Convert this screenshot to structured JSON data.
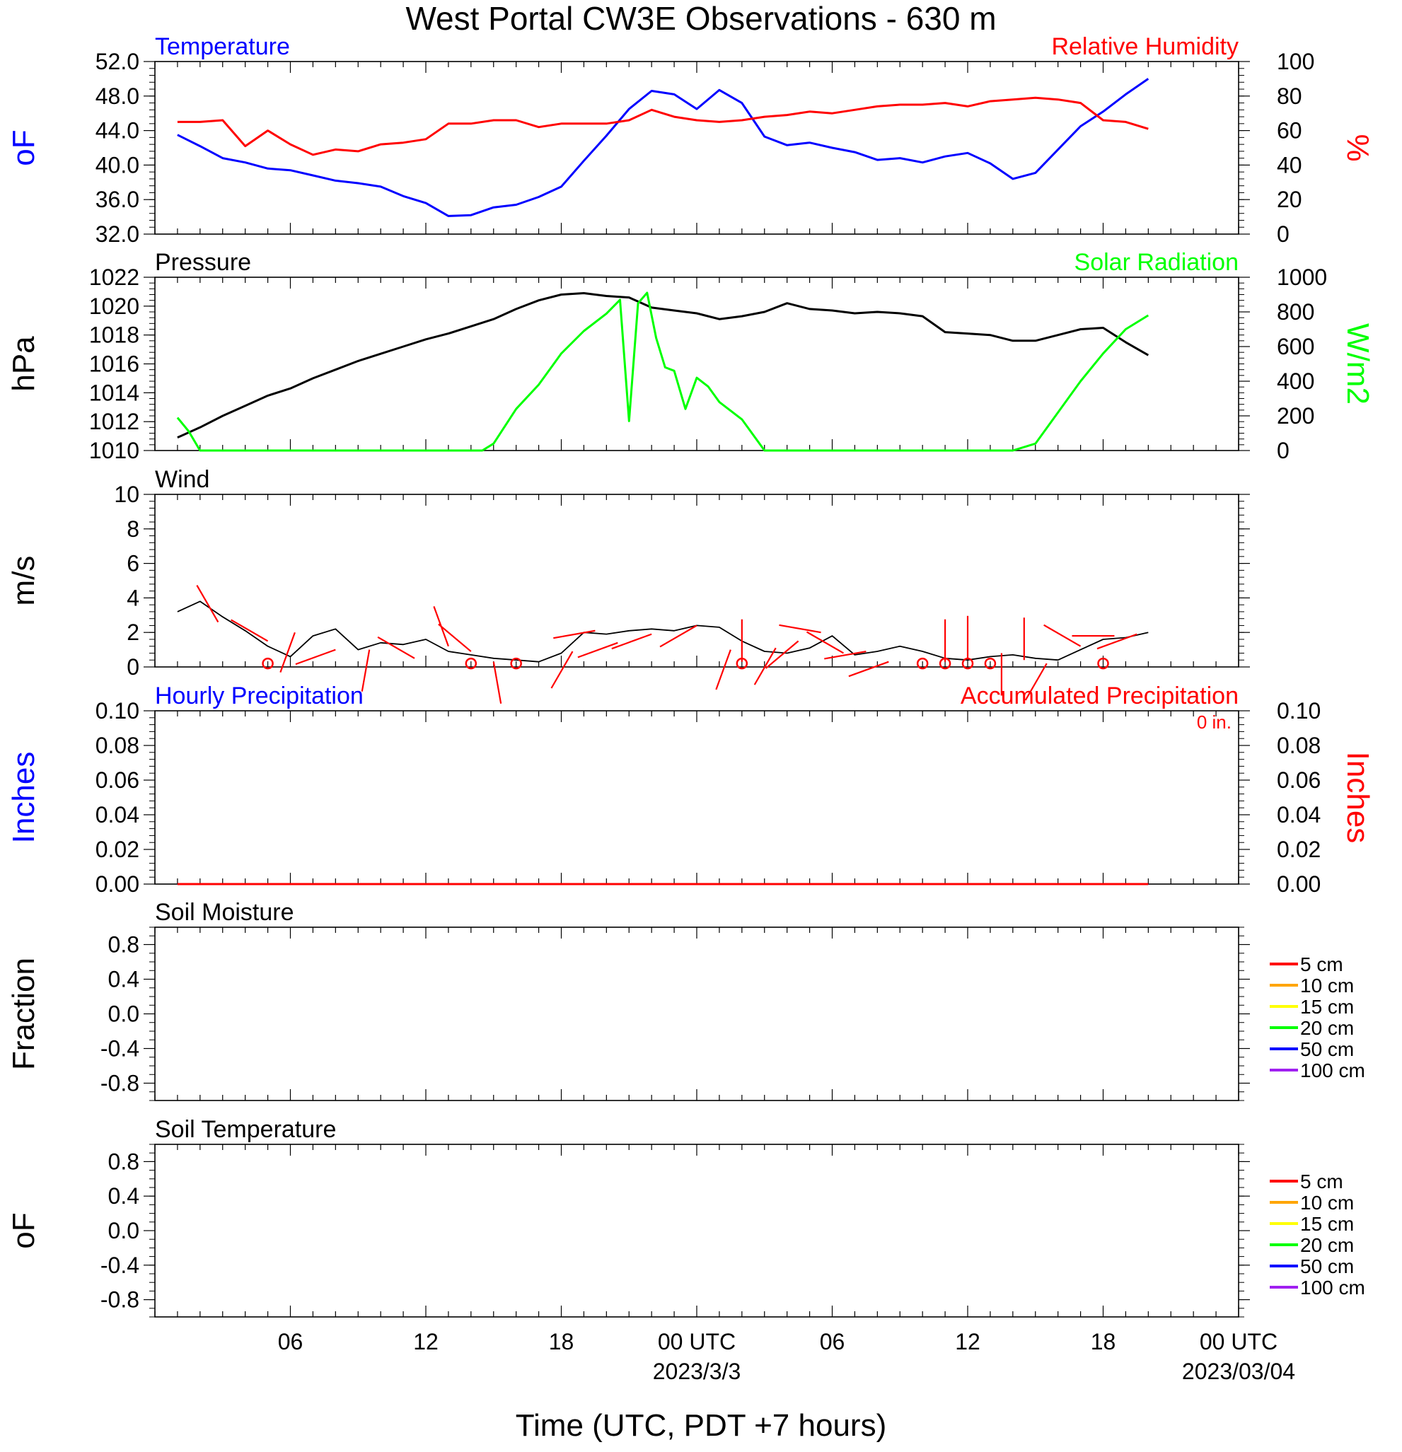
{
  "title": "West Portal CW3E Observations - 630 m",
  "xlabel": "Time (UTC, PDT +7 hours)",
  "x_ticks": [
    "06",
    "12",
    "18",
    "00 UTC",
    "06",
    "12",
    "18",
    "00 UTC"
  ],
  "x_dates": [
    "2023/3/3",
    "2023/03/04"
  ],
  "colors": {
    "temp": "#0000ff",
    "rh": "#ff0000",
    "pressure": "#000000",
    "solar": "#00ff00",
    "wind": "#000000",
    "barb": "#ff0000",
    "precip_acc": "#ff0000",
    "precip_hourly": "#0000ff"
  },
  "chart_data": [
    {
      "type": "line",
      "title_left": "Temperature",
      "title_right": "Relative Humidity",
      "ylabel_left": "oF",
      "ylabel_right": "%",
      "y_ticks_left": [
        "52.0",
        "48.0",
        "44.0",
        "40.0",
        "36.0",
        "32.0"
      ],
      "y_ticks_right": [
        "100",
        "80",
        "60",
        "40",
        "20",
        "0"
      ],
      "ylim_left": [
        32,
        52
      ],
      "ylim_right": [
        0,
        100
      ],
      "x_unit": "hours since 2023-03-02 01 UTC",
      "series": [
        {
          "name": "Temperature",
          "axis": "left",
          "x": [
            0,
            1,
            2,
            3,
            4,
            5,
            6,
            7,
            8,
            9,
            10,
            11,
            12,
            13,
            14,
            15,
            16,
            17,
            18,
            19,
            20,
            21,
            22,
            23,
            24,
            25,
            26,
            27,
            28,
            29,
            30,
            31,
            32,
            33,
            34,
            35,
            36,
            37,
            38,
            39,
            40,
            41,
            42,
            43
          ],
          "y": [
            43.5,
            42.2,
            40.8,
            40.3,
            39.6,
            39.4,
            38.8,
            38.2,
            37.9,
            37.5,
            36.4,
            35.6,
            34.1,
            34.2,
            35.1,
            35.4,
            36.3,
            37.5,
            40.5,
            43.4,
            46.5,
            48.6,
            48.2,
            46.5,
            48.7,
            47.2,
            43.3,
            42.3,
            42.6,
            42.0,
            41.5,
            40.6,
            40.8,
            40.3,
            41.0,
            41.4,
            40.2,
            38.4,
            39.1,
            41.8,
            44.5,
            46.2,
            48.2,
            50.0
          ]
        },
        {
          "name": "Relative Humidity",
          "axis": "right",
          "x": [
            0,
            1,
            2,
            3,
            4,
            5,
            6,
            7,
            8,
            9,
            10,
            11,
            12,
            13,
            14,
            15,
            16,
            17,
            18,
            19,
            20,
            21,
            22,
            23,
            24,
            25,
            26,
            27,
            28,
            29,
            30,
            31,
            32,
            33,
            34,
            35,
            36,
            37,
            38,
            39,
            40,
            41,
            42,
            43
          ],
          "y": [
            65,
            65,
            66,
            51,
            60,
            52,
            46,
            49,
            48,
            52,
            53,
            55,
            64,
            64,
            66,
            66,
            62,
            64,
            64,
            64,
            66,
            72,
            68,
            66,
            65,
            66,
            68,
            69,
            71,
            70,
            72,
            74,
            75,
            75,
            76,
            74,
            77,
            78,
            79,
            78,
            76,
            66,
            65,
            61
          ]
        }
      ]
    },
    {
      "type": "line",
      "title_left": "Pressure",
      "title_right": "Solar Radiation",
      "ylabel_left": "hPa",
      "ylabel_right": "W/m2",
      "y_ticks_left": [
        "1022",
        "1020",
        "1018",
        "1016",
        "1014",
        "1012",
        "1010"
      ],
      "y_ticks_right": [
        "1000",
        "800",
        "600",
        "400",
        "200",
        "0"
      ],
      "ylim_left": [
        1010,
        1022
      ],
      "ylim_right": [
        0,
        1000
      ],
      "x_unit": "hours since 2023-03-02 01 UTC",
      "series": [
        {
          "name": "Pressure",
          "axis": "left",
          "x": [
            0,
            1,
            2,
            3,
            4,
            5,
            6,
            7,
            8,
            9,
            10,
            11,
            12,
            13,
            14,
            15,
            16,
            17,
            18,
            19,
            20,
            21,
            22,
            23,
            24,
            25,
            26,
            27,
            28,
            29,
            30,
            31,
            32,
            33,
            34,
            35,
            36,
            37,
            38,
            39,
            40,
            41,
            42,
            43
          ],
          "y": [
            1010.9,
            1011.6,
            1012.4,
            1013.1,
            1013.8,
            1014.3,
            1015.0,
            1015.6,
            1016.2,
            1016.7,
            1017.2,
            1017.7,
            1018.1,
            1018.6,
            1019.1,
            1019.8,
            1020.4,
            1020.8,
            1020.9,
            1020.7,
            1020.6,
            1019.9,
            1019.7,
            1019.5,
            1019.1,
            1019.3,
            1019.6,
            1020.2,
            1019.8,
            1019.7,
            1019.5,
            1019.6,
            1019.5,
            1019.3,
            1018.2,
            1018.1,
            1018.0,
            1017.6,
            1017.6,
            1018.0,
            1018.4,
            1018.5,
            1017.5,
            1016.6
          ]
        },
        {
          "name": "Solar Radiation",
          "axis": "right",
          "x": [
            0,
            0.5,
            1,
            13.5,
            14,
            15,
            16,
            17,
            18,
            19,
            19.6,
            20,
            20.4,
            20.8,
            21.2,
            21.6,
            22,
            22.5,
            23,
            23.5,
            24,
            25,
            26,
            37,
            38,
            39,
            40,
            41,
            42,
            43
          ],
          "y": [
            190,
            110,
            0,
            0,
            40,
            240,
            380,
            560,
            690,
            790,
            870,
            170,
            850,
            910,
            650,
            480,
            460,
            240,
            420,
            370,
            280,
            180,
            0,
            0,
            40,
            220,
            400,
            560,
            700,
            780
          ]
        }
      ]
    },
    {
      "type": "line",
      "title_left": "Wind",
      "ylabel_left": "m/s",
      "y_ticks_left": [
        "10",
        "8",
        "6",
        "4",
        "2",
        "0"
      ],
      "ylim_left": [
        0,
        10
      ],
      "x_unit": "hours since 2023-03-02 01 UTC",
      "series": [
        {
          "name": "Wind",
          "axis": "left",
          "x": [
            0,
            1,
            2,
            3,
            4,
            5,
            6,
            7,
            8,
            9,
            10,
            11,
            12,
            13,
            14,
            15,
            16,
            17,
            18,
            19,
            20,
            21,
            22,
            23,
            24,
            25,
            26,
            27,
            28,
            29,
            30,
            31,
            32,
            33,
            34,
            35,
            36,
            37,
            38,
            39,
            40,
            41,
            42,
            43
          ],
          "y": [
            3.2,
            3.8,
            2.9,
            2.1,
            1.2,
            0.6,
            1.8,
            2.2,
            1.0,
            1.4,
            1.3,
            1.6,
            0.9,
            0.7,
            0.5,
            0.4,
            0.3,
            0.8,
            2.0,
            1.9,
            2.1,
            2.2,
            2.1,
            2.4,
            2.3,
            1.5,
            0.9,
            0.8,
            1.1,
            1.8,
            0.7,
            0.9,
            1.2,
            0.9,
            0.5,
            0.4,
            0.6,
            0.7,
            0.5,
            0.4,
            1.0,
            1.6,
            1.7,
            2.0
          ]
        }
      ],
      "barb_hours": [
        1.8,
        4.0,
        5.2,
        7.0,
        8.5,
        10.5,
        12.0,
        13.0,
        14.0,
        15.5,
        16.0,
        17.5,
        18.5,
        19.5,
        21.0,
        23.0,
        24.5,
        25.0,
        26.5,
        27.5,
        28.5,
        29.5,
        30.5,
        31.5,
        32.5,
        33.0,
        34.0,
        35.0,
        36.5,
        37.5,
        38.5,
        40.0,
        41.5,
        42.5
      ],
      "barb_speed": [
        2.6,
        1.5,
        2.0,
        1.0,
        1.0,
        0.5,
        1.2,
        0.9,
        0.3,
        0.0,
        0.0,
        0.9,
        2.1,
        1.4,
        1.9,
        2.4,
        1.0,
        0.3,
        1.1,
        1.5,
        2.0,
        0.8,
        0.9,
        0.3,
        0.0,
        0.0,
        0.3,
        0.5,
        0.8,
        0.4,
        0.2,
        1.2,
        1.8,
        1.9
      ],
      "barb_dir": [
        330,
        300,
        200,
        250,
        190,
        300,
        340,
        310,
        170,
        0,
        0,
        210,
        260,
        250,
        250,
        240,
        200,
        0,
        210,
        230,
        280,
        300,
        260,
        250,
        0,
        0,
        0,
        0,
        180,
        0,
        210,
        300,
        270,
        250
      ],
      "calm_hours": [
        4.0,
        13.0,
        15.0,
        25.0,
        33.0,
        34.0,
        35.0,
        36.0,
        41.0
      ]
    },
    {
      "type": "bar",
      "title_left": "Hourly Precipitation",
      "title_right": "Accumulated Precipitation",
      "annotation": "0 in.",
      "ylabel_left": "Inches",
      "ylabel_right": "Inches",
      "y_ticks_left": [
        "0.10",
        "0.08",
        "0.06",
        "0.04",
        "0.02",
        "0.00"
      ],
      "y_ticks_right": [
        "0.10",
        "0.08",
        "0.06",
        "0.04",
        "0.02",
        "0.00"
      ],
      "ylim_left": [
        0,
        0.1
      ],
      "ylim_right": [
        0,
        0.1
      ],
      "x_unit": "hours since 2023-03-02 01 UTC",
      "series": [
        {
          "name": "Hourly Precipitation",
          "axis": "left",
          "x": [
            0,
            43
          ],
          "y": [
            0,
            0
          ]
        },
        {
          "name": "Accumulated Precipitation",
          "axis": "right",
          "x": [
            0,
            43
          ],
          "y": [
            0,
            0
          ]
        }
      ]
    },
    {
      "type": "line",
      "title_left": "Soil Moisture",
      "ylabel_left": "Fraction",
      "y_ticks_left": [
        "0.8",
        "0.4",
        "0.0",
        "-0.4",
        "-0.8"
      ],
      "ylim_left": [
        -1,
        1
      ],
      "legend_placement": "right",
      "legend": [
        {
          "label": "5 cm",
          "color": "#ff0000"
        },
        {
          "label": "10 cm",
          "color": "#ffa500"
        },
        {
          "label": "15 cm",
          "color": "#ffff00"
        },
        {
          "label": "20 cm",
          "color": "#00ff00"
        },
        {
          "label": "50 cm",
          "color": "#0000ff"
        },
        {
          "label": "100 cm",
          "color": "#a020f0"
        }
      ],
      "series": []
    },
    {
      "type": "line",
      "title_left": "Soil Temperature",
      "ylabel_left": "oF",
      "y_ticks_left": [
        "0.8",
        "0.4",
        "0.0",
        "-0.4",
        "-0.8"
      ],
      "ylim_left": [
        -1,
        1
      ],
      "legend_placement": "right",
      "legend": [
        {
          "label": "5 cm",
          "color": "#ff0000"
        },
        {
          "label": "10 cm",
          "color": "#ffa500"
        },
        {
          "label": "15 cm",
          "color": "#ffff00"
        },
        {
          "label": "20 cm",
          "color": "#00ff00"
        },
        {
          "label": "50 cm",
          "color": "#0000ff"
        },
        {
          "label": "100 cm",
          "color": "#a020f0"
        }
      ],
      "series": []
    }
  ]
}
